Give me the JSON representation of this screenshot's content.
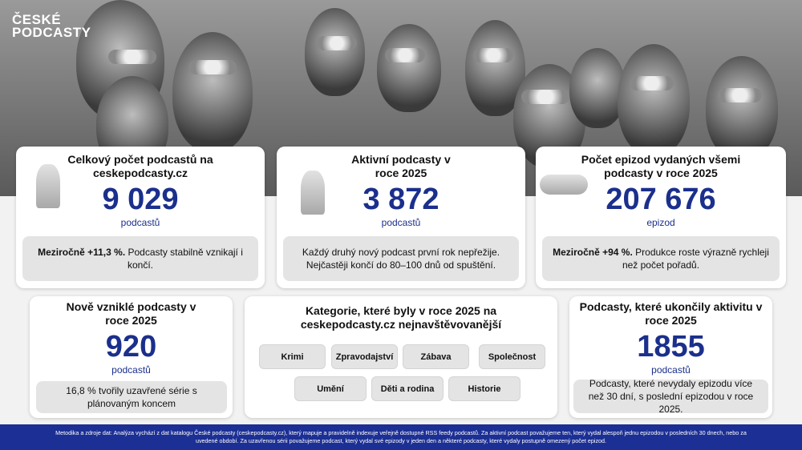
{
  "logo": {
    "line1": "ČESKÉ",
    "line2": "PODCASTY"
  },
  "cards": {
    "total": {
      "title": "Celkový počet podcastů na ceskepodcasty.cz",
      "value": "9 029",
      "unit": "podcastů",
      "note_bold": "Meziročně +11,3 %.",
      "note": " Podcasty stabilně vznikají i končí."
    },
    "active": {
      "title": "Aktivní podcasty v roce 2025",
      "value": "3 872",
      "unit": "podcastů",
      "note": "Každý druhý nový podcast první rok nepřežije. Nejčastěji končí do 80–100 dnů od spuštění."
    },
    "episodes": {
      "title": "Počet epizod vydaných všemi podcasty v roce 2025",
      "value": "207 676",
      "unit": "epizod",
      "note_bold": "Meziročně +94 %.",
      "note": " Produkce roste výrazně rychleji než počet pořadů."
    },
    "new": {
      "title": "Nově vzniklé podcasty v roce 2025",
      "value": "920",
      "unit": "podcastů",
      "note": "16,8 % tvořily uzavřené série s plánovaným koncem"
    },
    "categories": {
      "title": "Kategorie, které byly v roce 2025 na ceskepodcasty.cz nejnavštěvovanější",
      "items": [
        "Krimi",
        "Zpravodajství",
        "Zábava",
        "Společnost",
        "Umění",
        "Děti a rodina",
        "Historie"
      ]
    },
    "ended": {
      "title": "Podcasty, které ukončily aktivitu v roce 2025",
      "value": "1855",
      "unit": "podcastů",
      "note": "Podcasty, které nevydaly epizodu více než 30 dní, s poslední epizodou v roce 2025."
    }
  },
  "footer": "Metodika a zdroje dat: Analýza vychází z dat katalogu České podcasty (ceskepodcasty.cz), který mapuje a pravidelně indexuje veřejně dostupné RSS feedy podcastů. Za aktivní podcast považujeme ten, který vydal alespoň jednu epizodou v posledních 30 dnech, nebo za uvedené období. Za uzavřenou sérii považujeme podcast, který vydal své epizody v jeden den a některé podcasty, které vydaly postupně omezený počet epizod.",
  "colors": {
    "accent": "#1b2f8c",
    "footer": "#1c2f94"
  }
}
